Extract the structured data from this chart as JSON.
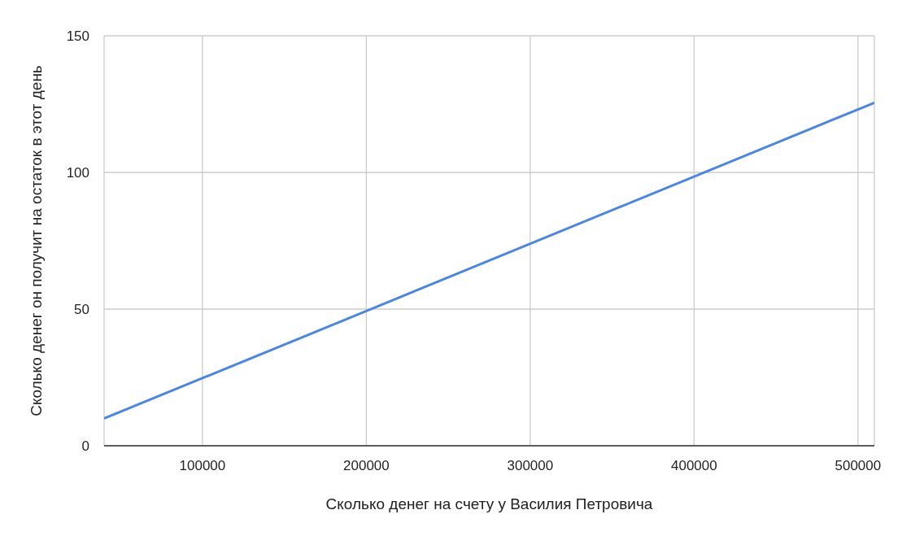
{
  "chart_data": {
    "type": "line",
    "xlabel": "Сколько денег на счету у Василия Петровича",
    "ylabel": "Сколько денег он получит на остаток в этот день",
    "x": [
      40000,
      200000,
      400000,
      510000
    ],
    "series": [
      {
        "color": "#4a86e8",
        "values": [
          10,
          49.3,
          98.5,
          125.5
        ]
      }
    ],
    "xlim": [
      40000,
      510000
    ],
    "xticks": [
      100000,
      200000,
      300000,
      400000,
      500000
    ],
    "ylim": [
      0,
      150
    ],
    "yticks": [
      0,
      50,
      100,
      150
    ],
    "grid": true,
    "legend": false,
    "marker": "none",
    "line_style": "solid"
  }
}
